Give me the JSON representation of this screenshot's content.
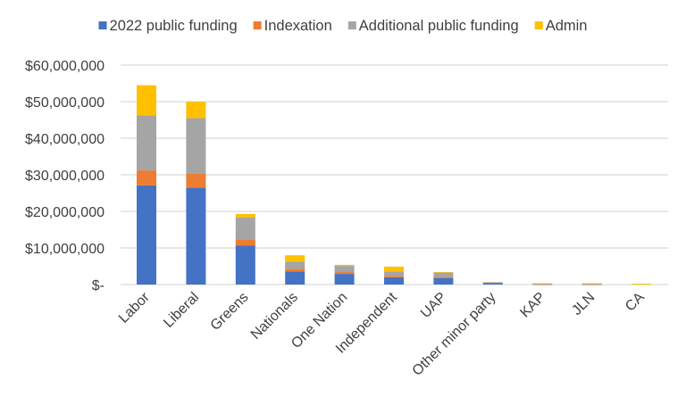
{
  "chart_data": {
    "type": "bar",
    "stacked": true,
    "title": "",
    "xlabel": "",
    "ylabel": "",
    "ylim": [
      0,
      60000000
    ],
    "yticks": [
      0,
      10000000,
      20000000,
      30000000,
      40000000,
      50000000,
      60000000
    ],
    "ytick_labels": [
      "$-",
      "$10,000,000",
      "$20,000,000",
      "$30,000,000",
      "$40,000,000",
      "$50,000,000",
      "$60,000,000"
    ],
    "grid": true,
    "legend_placement": "top",
    "categories": [
      "Labor",
      "Liberal",
      "Greens",
      "Nationals",
      "One Nation",
      "Independent",
      "UAP",
      "Other minor party",
      "KAP",
      "JLN",
      "CA"
    ],
    "series": [
      {
        "name": "2022 public funding",
        "color": "#4472C4",
        "values": [
          27100000,
          26500000,
          10700000,
          3600000,
          2900000,
          2000000,
          1800000,
          450000,
          50000,
          50000,
          0
        ]
      },
      {
        "name": "Indexation",
        "color": "#ED7D31",
        "values": [
          4100000,
          3900000,
          1600000,
          700000,
          500000,
          400000,
          300000,
          50000,
          20000,
          20000,
          0
        ]
      },
      {
        "name": "Additional public funding",
        "color": "#A5A5A5",
        "values": [
          15100000,
          15100000,
          6000000,
          2000000,
          1700000,
          1200000,
          1200000,
          150000,
          200000,
          200000,
          0
        ]
      },
      {
        "name": "Admin",
        "color": "#FFC000",
        "values": [
          8200000,
          4500000,
          1000000,
          1700000,
          300000,
          1300000,
          100000,
          0,
          80000,
          80000,
          250000
        ]
      }
    ]
  }
}
